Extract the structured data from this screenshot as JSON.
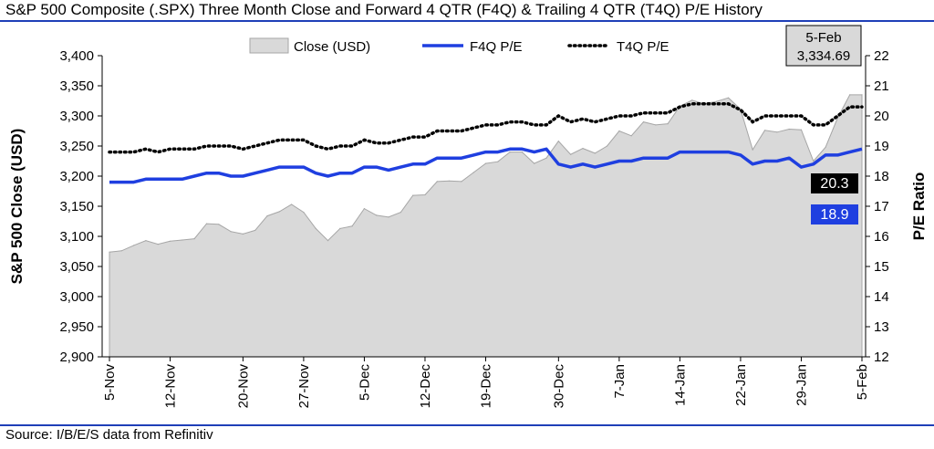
{
  "title": "S&P 500 Composite (.SPX) Three Month Close and Forward 4 QTR (F4Q) & Trailing 4 QTR (T4Q) P/E History",
  "source": "Source: I/B/E/S data from Refinitiv",
  "colors": {
    "rule": "#1f3fb8",
    "area_fill": "#d9d9d9",
    "area_stroke": "#a6a6a6",
    "f4q": "#1f3fe0",
    "t4q": "#000000"
  },
  "chart_data": {
    "type": "area",
    "x": [
      "5-Nov",
      "6-Nov",
      "7-Nov",
      "8-Nov",
      "11-Nov",
      "12-Nov",
      "13-Nov",
      "14-Nov",
      "15-Nov",
      "18-Nov",
      "19-Nov",
      "20-Nov",
      "21-Nov",
      "22-Nov",
      "25-Nov",
      "26-Nov",
      "27-Nov",
      "29-Nov",
      "2-Dec",
      "3-Dec",
      "4-Dec",
      "5-Dec",
      "6-Dec",
      "9-Dec",
      "10-Dec",
      "11-Dec",
      "12-Dec",
      "13-Dec",
      "16-Dec",
      "17-Dec",
      "18-Dec",
      "19-Dec",
      "20-Dec",
      "23-Dec",
      "24-Dec",
      "26-Dec",
      "27-Dec",
      "30-Dec",
      "31-Dec",
      "2-Jan",
      "3-Jan",
      "6-Jan",
      "7-Jan",
      "8-Jan",
      "9-Jan",
      "10-Jan",
      "13-Jan",
      "14-Jan",
      "15-Jan",
      "16-Jan",
      "17-Jan",
      "21-Jan",
      "22-Jan",
      "23-Jan",
      "24-Jan",
      "27-Jan",
      "28-Jan",
      "29-Jan",
      "30-Jan",
      "31-Jan",
      "3-Feb",
      "4-Feb",
      "5-Feb"
    ],
    "x_tick_labels": [
      "5-Nov",
      "12-Nov",
      "20-Nov",
      "27-Nov",
      "5-Dec",
      "12-Dec",
      "19-Dec",
      "30-Dec",
      "7-Jan",
      "14-Jan",
      "22-Jan",
      "29-Jan",
      "5-Feb"
    ],
    "series": [
      {
        "name": "Close (USD)",
        "axis": "left",
        "style": "area",
        "values": [
          3074,
          3076,
          3085,
          3093,
          3087,
          3092,
          3094,
          3096,
          3121,
          3120,
          3108,
          3104,
          3110,
          3134,
          3141,
          3153,
          3140,
          3113,
          3093,
          3113,
          3117,
          3146,
          3135,
          3132,
          3140,
          3168,
          3169,
          3191,
          3192,
          3191,
          3206,
          3221,
          3224,
          3240,
          3240,
          3221,
          3230,
          3258,
          3236,
          3246,
          3238,
          3250,
          3275,
          3267,
          3290,
          3285,
          3287,
          3316,
          3326,
          3320,
          3324,
          3330,
          3311,
          3244,
          3276,
          3273,
          3278,
          3277,
          3225,
          3248,
          3297,
          3335,
          3335
        ]
      },
      {
        "name": "F4Q P/E",
        "axis": "right",
        "style": "line",
        "values": [
          17.8,
          17.8,
          17.8,
          17.9,
          17.9,
          17.9,
          17.9,
          18.0,
          18.1,
          18.1,
          18.0,
          18.0,
          18.1,
          18.2,
          18.3,
          18.3,
          18.3,
          18.1,
          18.0,
          18.1,
          18.1,
          18.3,
          18.3,
          18.2,
          18.3,
          18.4,
          18.4,
          18.6,
          18.6,
          18.6,
          18.7,
          18.8,
          18.8,
          18.9,
          18.9,
          18.8,
          18.9,
          18.4,
          18.3,
          18.4,
          18.3,
          18.4,
          18.5,
          18.5,
          18.6,
          18.6,
          18.6,
          18.8,
          18.8,
          18.8,
          18.8,
          18.8,
          18.7,
          18.4,
          18.5,
          18.5,
          18.6,
          18.3,
          18.4,
          18.7,
          18.7,
          18.8,
          18.9
        ]
      },
      {
        "name": "T4Q P/E",
        "axis": "right",
        "style": "dotted",
        "values": [
          18.8,
          18.8,
          18.8,
          18.9,
          18.8,
          18.9,
          18.9,
          18.9,
          19.0,
          19.0,
          19.0,
          18.9,
          19.0,
          19.1,
          19.2,
          19.2,
          19.2,
          19.0,
          18.9,
          19.0,
          19.0,
          19.2,
          19.1,
          19.1,
          19.2,
          19.3,
          19.3,
          19.5,
          19.5,
          19.5,
          19.6,
          19.7,
          19.7,
          19.8,
          19.8,
          19.7,
          19.7,
          20.0,
          19.8,
          19.9,
          19.8,
          19.9,
          20.0,
          20.0,
          20.1,
          20.1,
          20.1,
          20.3,
          20.4,
          20.4,
          20.4,
          20.4,
          20.2,
          19.8,
          20.0,
          20.0,
          20.0,
          20.0,
          19.7,
          19.7,
          20.0,
          20.3,
          20.3
        ]
      }
    ],
    "ylabel_left": "S&P 500 Close (USD)",
    "ylabel_right": "P/E Ratio",
    "ylim_left": [
      2900,
      3400
    ],
    "ylim_right": [
      12,
      22
    ],
    "left_ticks": [
      "2,900",
      "2,950",
      "3,000",
      "3,050",
      "3,100",
      "3,150",
      "3,200",
      "3,250",
      "3,300",
      "3,350",
      "3,400"
    ],
    "right_ticks": [
      "12",
      "13",
      "14",
      "15",
      "16",
      "17",
      "18",
      "19",
      "20",
      "21",
      "22"
    ],
    "legend": [
      "Close (USD)",
      "F4Q P/E",
      "T4Q P/E"
    ],
    "legend_position": "top",
    "annotations": {
      "date": "5-Feb",
      "close_value": "3,334.69",
      "t4q_label": "20.3",
      "f4q_label": "18.9"
    },
    "grid": false
  }
}
